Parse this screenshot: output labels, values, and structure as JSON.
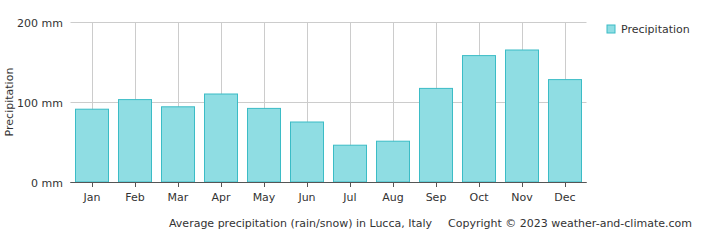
{
  "chart_data": {
    "type": "bar",
    "title": "Average precipitation (rain/snow) in Lucca, Italy",
    "subtitle": "Copyright © 2023  weather-and-climate.com",
    "y_label": "Precipitation",
    "categories": [
      "Jan",
      "Feb",
      "Mar",
      "Apr",
      "May",
      "Jun",
      "Jul",
      "Aug",
      "Sep",
      "Oct",
      "Nov",
      "Dec"
    ],
    "series": [
      {
        "name": "Precipitation",
        "color": "#8fdde3",
        "values": [
          91,
          103,
          94,
          110,
          92,
          75,
          46,
          51,
          117,
          158,
          165,
          128
        ]
      }
    ],
    "ylim": [
      0,
      200
    ],
    "yticks": [
      {
        "value": 0,
        "label": "0 mm"
      },
      {
        "value": 100,
        "label": "100 mm"
      },
      {
        "value": 200,
        "label": "200 mm"
      }
    ],
    "grid": true,
    "legend": "top-right"
  }
}
